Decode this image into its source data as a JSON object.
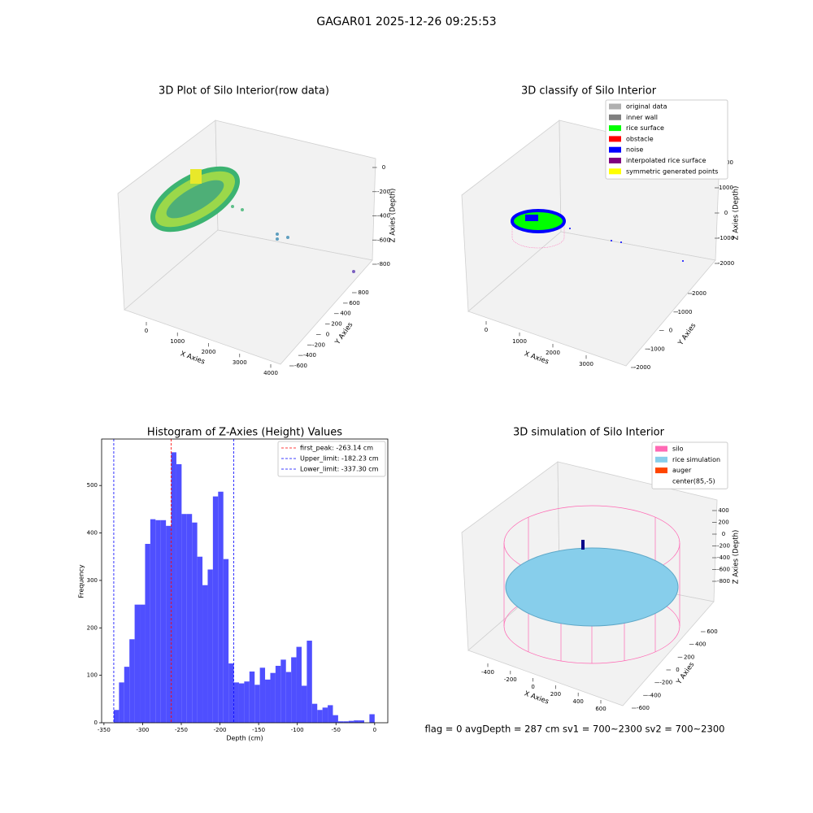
{
  "title": "GAGAR01 2025-12-26 09:25:53",
  "annotation": "flag = 0     avgDepth = 287 cm  sv1 = 700~2300  sv2 = 700~2300",
  "chart_data": [
    {
      "type": "scatter3d",
      "title": "3D Plot of Silo Interior(row data)",
      "xlabel": "X Axies",
      "ylabel": "Y Axies",
      "zlabel": "Z Axies (Depth)",
      "xticks": [
        0,
        1000,
        2000,
        3000,
        4000
      ],
      "yticks": [
        -600,
        -400,
        -200,
        0,
        200,
        400,
        600,
        800
      ],
      "zticks": [
        -800,
        -600,
        -400,
        -200,
        0
      ]
    },
    {
      "type": "scatter3d",
      "title": "3D classify of Silo Interior",
      "xlabel": "X Axies",
      "ylabel": "Y Axies",
      "zlabel": "Z Axies (Depth)",
      "xticks": [
        0,
        1000,
        2000,
        3000
      ],
      "yticks": [
        -2000,
        -1000,
        0,
        1000,
        2000
      ],
      "zticks": [
        -2000,
        -1000,
        0,
        1000,
        2000
      ],
      "series": [
        {
          "name": "original data",
          "color": "#b0b0b0"
        },
        {
          "name": "inner wall",
          "color": "#808080"
        },
        {
          "name": "rice surface",
          "color": "#00ff00"
        },
        {
          "name": "obstacle",
          "color": "#ff0000"
        },
        {
          "name": "noise",
          "color": "#0000ff"
        },
        {
          "name": "interpolated rice surface",
          "color": "#800080"
        },
        {
          "name": "symmetric generated points",
          "color": "#ffff00"
        }
      ]
    },
    {
      "type": "histogram",
      "title": "Histogram of Z-Axies (Height) Values",
      "xlabel": "Depth (cm)",
      "ylabel": "Frequency",
      "color": "#4f4fff",
      "bins": [
        -337.3,
        -330.55,
        -323.81,
        -317.06,
        -310.32,
        -303.57,
        -296.82,
        -290.08,
        -283.33,
        -276.59,
        -269.84,
        -263.09,
        -256.35,
        -249.6,
        -242.86,
        -236.11,
        -229.36,
        -222.62,
        -215.87,
        -209.13,
        -202.38,
        -195.63,
        -188.89,
        -182.14,
        -175.4,
        -168.65,
        -161.9,
        -155.16,
        -148.41,
        -141.67,
        -134.92,
        -128.17,
        -121.43,
        -114.68,
        -107.94,
        -101.19,
        -94.44,
        -87.7,
        -80.95,
        -74.21,
        -67.46,
        -60.71,
        -53.97,
        -47.22,
        -40.48,
        -33.73,
        -26.98,
        -20.24,
        -13.49,
        -6.75,
        0
      ],
      "values": [
        27,
        85,
        118,
        176,
        249,
        249,
        377,
        429,
        427,
        427,
        415,
        570,
        545,
        440,
        440,
        422,
        350,
        290,
        323,
        477,
        487,
        345,
        125,
        85,
        83,
        87,
        108,
        80,
        116,
        91,
        105,
        120,
        133,
        107,
        138,
        160,
        78,
        173,
        40,
        27,
        32,
        37,
        16,
        3,
        3,
        4,
        5,
        5,
        0,
        18
      ],
      "xlim": [
        -353,
        17
      ],
      "ylim": [
        0,
        598
      ],
      "xticks": [
        -350,
        -300,
        -250,
        -200,
        -150,
        -100,
        -50,
        0
      ],
      "yticks": [
        0,
        100,
        200,
        300,
        400,
        500
      ],
      "vlines": [
        {
          "label": "first_peak: -263.14 cm",
          "value": -263.14,
          "color": "#ff0000"
        },
        {
          "label": "Upper_limit: -182.23 cm",
          "value": -182.23,
          "color": "#0000ff"
        },
        {
          "label": "Lower_limit: -337.30 cm",
          "value": -337.3,
          "color": "#0000ff"
        }
      ],
      "legend": "upper right"
    },
    {
      "type": "scatter3d",
      "title": "3D simulation of Silo Interior",
      "xlabel": "X Axies",
      "ylabel": "Y Axies",
      "zlabel": "Z Axies (Depth)",
      "xticks": [
        -400,
        -200,
        0,
        200,
        400,
        600
      ],
      "yticks": [
        -600,
        -400,
        -200,
        0,
        200,
        400,
        600
      ],
      "zticks": [
        -800,
        -600,
        -400,
        -200,
        0,
        200,
        400
      ],
      "series": [
        {
          "name": "silo",
          "color": "#ff69b4"
        },
        {
          "name": "rice simulation",
          "color": "#87ceeb"
        },
        {
          "name": "auger",
          "color": "#ff4500"
        },
        {
          "name": "center(85,-5)",
          "color": "#ffffff"
        }
      ]
    }
  ]
}
